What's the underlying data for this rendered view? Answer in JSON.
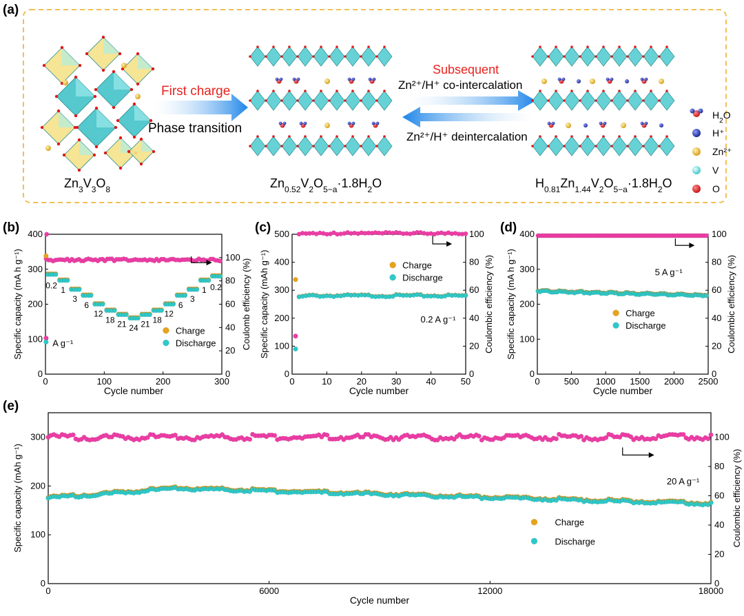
{
  "panel_a": {
    "label": "(a)",
    "left_structure": "Zn3V3O8",
    "mid_structure": {
      "base": "Zn",
      "sub1": "0.52",
      "mid": "V",
      "sub2": "2",
      "mid2": "O",
      "sub3": "5−a",
      "tail": "·1.8H",
      "sub4": "2",
      "tail2": "O"
    },
    "right_structure": {
      "base": "H",
      "sub1": "0.81",
      "mid": "Zn",
      "sub2": "1.44",
      "mid2": "V",
      "sub3": "2",
      "mid3": "O",
      "sub4": "5−a",
      "tail": "·1.8H",
      "sub5": "2",
      "tail2": "O"
    },
    "arrow1_top": "First charge",
    "arrow1_bottom": "Phase transition",
    "arrow2_top": "Subsequent",
    "arrow2_mid": "Zn²⁺/H⁺ co-intercalation",
    "arrow2_bottom": "Zn²⁺/H⁺ deintercalation",
    "legend": [
      "H₂O",
      "H⁺",
      "Zn²⁺",
      "V",
      "O"
    ],
    "colors": {
      "h2o_o": "#d42020",
      "h": "#1c2ba8",
      "zn": "#e6ad1e",
      "v": "#5fd6d8",
      "o": "#e01818",
      "polyhedra": "#6fd3d6",
      "red_text": "#e8231f",
      "border": "#f0c050"
    }
  },
  "chart_data": [
    {
      "type": "scatter",
      "panel": "(b)",
      "xlabel": "Cycle number",
      "ylabel": "Specific capacity (mA h g⁻¹)",
      "y2label": "Coulomb efficiency (%)",
      "xlim": [
        0,
        300
      ],
      "ylim": [
        0,
        400
      ],
      "y2lim": [
        0,
        120
      ],
      "xticks": [
        0,
        100,
        200,
        300
      ],
      "yticks": [
        0,
        100,
        200,
        300,
        400
      ],
      "y2ticks": [
        0,
        20,
        40,
        60,
        80,
        100
      ],
      "rate_labels": [
        "0.2",
        "1",
        "3",
        "6",
        "12",
        "18",
        "21",
        "24",
        "21",
        "18",
        "12",
        "6",
        "3",
        "1",
        "0.2"
      ],
      "rate_unit": "A g⁻¹",
      "rate_capacities": [
        285,
        268,
        242,
        225,
        200,
        182,
        170,
        160,
        170,
        182,
        200,
        225,
        242,
        268,
        280
      ],
      "first_charge": 338,
      "first_discharge": 92,
      "efficiency": 98,
      "legend": [
        "Charge",
        "Discharge"
      ]
    },
    {
      "type": "scatter",
      "panel": "(c)",
      "xlabel": "Cycle number",
      "ylabel": "Specific capacity (mAh g⁻¹)",
      "y2label": "Coulombic efficiency (%)",
      "xlim": [
        0,
        50
      ],
      "ylim": [
        0,
        500
      ],
      "y2lim": [
        0,
        100
      ],
      "xticks": [
        0,
        10,
        20,
        30,
        40,
        50
      ],
      "yticks": [
        0,
        100,
        200,
        300,
        400,
        500
      ],
      "y2ticks": [
        0,
        20,
        40,
        60,
        80,
        100
      ],
      "annotation": "0.2 A g⁻¹",
      "first_charge": 338,
      "first_discharge": 90,
      "capacity": 280,
      "efficiency": 100,
      "legend": [
        "Charge",
        "Discharge"
      ]
    },
    {
      "type": "scatter",
      "panel": "(d)",
      "xlabel": "Cycle number",
      "ylabel": "Specific capacity (mA h g⁻¹)",
      "y2label": "Coulombic efficiency (%)",
      "xlim": [
        0,
        2500
      ],
      "ylim": [
        0,
        400
      ],
      "y2lim": [
        0,
        100
      ],
      "xticks": [
        0,
        500,
        1000,
        1500,
        2000,
        2500
      ],
      "yticks": [
        0,
        100,
        200,
        300,
        400
      ],
      "y2ticks": [
        0,
        20,
        40,
        60,
        80,
        100
      ],
      "annotation": "5 A g⁻¹",
      "capacity_start": 237,
      "capacity_end": 225,
      "efficiency": 99,
      "legend": [
        "Charge",
        "Discharge"
      ]
    },
    {
      "type": "scatter",
      "panel": "(e)",
      "xlabel": "Cycle number",
      "ylabel": "Specific capacity (mAh g⁻¹)",
      "y2label": "Coulombic efficiency (%)",
      "xlim": [
        0,
        18000
      ],
      "ylim": [
        0,
        350
      ],
      "y2lim": [
        0,
        116.7
      ],
      "xticks": [
        0,
        6000,
        12000,
        18000
      ],
      "yticks": [
        0,
        100,
        200,
        300
      ],
      "y2ticks": [
        0,
        20,
        40,
        60,
        80,
        100
      ],
      "annotation": "20 A g⁻¹",
      "capacity_start": 175,
      "capacity_peak": 195,
      "capacity_end": 163,
      "efficiency": 100,
      "legend": [
        "Charge",
        "Discharge"
      ]
    }
  ],
  "series_colors": {
    "charge": "#e8a31a",
    "discharge": "#2ec9c9",
    "efficiency": "#ee3da6"
  }
}
